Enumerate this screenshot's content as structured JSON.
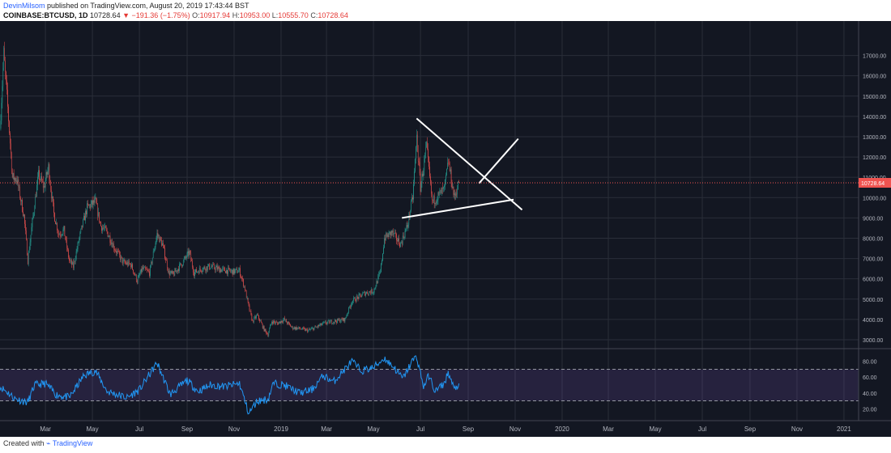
{
  "header": {
    "author": "DevinMilsom",
    "published": "published on TradingView.com, August 20, 2019 17:43:44 BST",
    "symbol": "COINBASE:BTCUSD, 1D",
    "last": "10728.64",
    "change": "−191.36 (−1.75%)",
    "o": "10917.94",
    "h": "10953.00",
    "l": "10555.70",
    "c": "10728.64"
  },
  "footer": {
    "created": "Created with",
    "brand": "TradingView"
  },
  "colors": {
    "up": "#26a69a",
    "down": "#ef5350",
    "background": "#131722",
    "rsi": "#2196f3",
    "band": "#7e57c2",
    "price_line": "#ef5350"
  },
  "chart_data": [
    {
      "type": "candlestick",
      "title": "COINBASE:BTCUSD, 1D",
      "x_range": [
        "2018-01-01",
        "2021-01-20"
      ],
      "ylim": [
        2600,
        17900
      ],
      "x_ticks": [
        {
          "label": "Mar",
          "date": "2018-03-01"
        },
        {
          "label": "May",
          "date": "2018-05-01"
        },
        {
          "label": "Jul",
          "date": "2018-07-01"
        },
        {
          "label": "Sep",
          "date": "2018-09-01"
        },
        {
          "label": "Nov",
          "date": "2018-11-01"
        },
        {
          "label": "2019",
          "date": "2019-01-01"
        },
        {
          "label": "Mar",
          "date": "2019-03-01"
        },
        {
          "label": "May",
          "date": "2019-05-01"
        },
        {
          "label": "Jul",
          "date": "2019-07-01"
        },
        {
          "label": "Sep",
          "date": "2019-09-01"
        },
        {
          "label": "Nov",
          "date": "2019-11-01"
        },
        {
          "label": "2020",
          "date": "2020-01-01"
        },
        {
          "label": "Mar",
          "date": "2020-03-01"
        },
        {
          "label": "May",
          "date": "2020-05-01"
        },
        {
          "label": "Jul",
          "date": "2020-07-01"
        },
        {
          "label": "Sep",
          "date": "2020-09-01"
        },
        {
          "label": "Nov",
          "date": "2020-11-01"
        },
        {
          "label": "2021",
          "date": "2021-01-01"
        }
      ],
      "y_ticks": [
        {
          "label": "17000.00",
          "value": 17000
        },
        {
          "label": "16000.00",
          "value": 16000
        },
        {
          "label": "15000.00",
          "value": 15000
        },
        {
          "label": "14000.00",
          "value": 14000
        },
        {
          "label": "13000.00",
          "value": 13000
        },
        {
          "label": "12000.00",
          "value": 12000
        },
        {
          "label": "11000.00",
          "value": 11000
        },
        {
          "label": "10000.00",
          "value": 10000
        },
        {
          "label": "9000.00",
          "value": 9000
        },
        {
          "label": "8000.00",
          "value": 8000
        },
        {
          "label": "7000.00",
          "value": 7000
        },
        {
          "label": "6000.00",
          "value": 6000
        },
        {
          "label": "5000.00",
          "value": 5000
        },
        {
          "label": "4000.00",
          "value": 4000
        },
        {
          "label": "3000.00",
          "value": 3000
        }
      ],
      "last_price": {
        "value": 10728.64,
        "label": "10728.64"
      },
      "closes": [
        {
          "date": "2018-01-01",
          "close": 13400
        },
        {
          "date": "2018-01-06",
          "close": 17100
        },
        {
          "date": "2018-01-10",
          "close": 15000
        },
        {
          "date": "2018-01-17",
          "close": 11000
        },
        {
          "date": "2018-01-23",
          "close": 10900
        },
        {
          "date": "2018-02-01",
          "close": 9100
        },
        {
          "date": "2018-02-06",
          "close": 6900
        },
        {
          "date": "2018-02-12",
          "close": 8800
        },
        {
          "date": "2018-02-20",
          "close": 11100
        },
        {
          "date": "2018-02-27",
          "close": 10500
        },
        {
          "date": "2018-03-05",
          "close": 11500
        },
        {
          "date": "2018-03-12",
          "close": 9200
        },
        {
          "date": "2018-03-18",
          "close": 8200
        },
        {
          "date": "2018-03-25",
          "close": 8400
        },
        {
          "date": "2018-04-01",
          "close": 6900
        },
        {
          "date": "2018-04-06",
          "close": 6600
        },
        {
          "date": "2018-04-14",
          "close": 8000
        },
        {
          "date": "2018-04-24",
          "close": 9500
        },
        {
          "date": "2018-05-05",
          "close": 9800
        },
        {
          "date": "2018-05-12",
          "close": 8600
        },
        {
          "date": "2018-05-20",
          "close": 8300
        },
        {
          "date": "2018-05-30",
          "close": 7500
        },
        {
          "date": "2018-06-10",
          "close": 6800
        },
        {
          "date": "2018-06-20",
          "close": 6700
        },
        {
          "date": "2018-06-28",
          "close": 5900
        },
        {
          "date": "2018-07-05",
          "close": 6500
        },
        {
          "date": "2018-07-14",
          "close": 6300
        },
        {
          "date": "2018-07-24",
          "close": 8200
        },
        {
          "date": "2018-07-31",
          "close": 7700
        },
        {
          "date": "2018-08-08",
          "close": 6300
        },
        {
          "date": "2018-08-14",
          "close": 6200
        },
        {
          "date": "2018-08-24",
          "close": 6700
        },
        {
          "date": "2018-09-04",
          "close": 7300
        },
        {
          "date": "2018-09-10",
          "close": 6300
        },
        {
          "date": "2018-09-20",
          "close": 6500
        },
        {
          "date": "2018-10-01",
          "close": 6600
        },
        {
          "date": "2018-10-15",
          "close": 6450
        },
        {
          "date": "2018-10-31",
          "close": 6350
        },
        {
          "date": "2018-11-08",
          "close": 6400
        },
        {
          "date": "2018-11-15",
          "close": 5500
        },
        {
          "date": "2018-11-20",
          "close": 4600
        },
        {
          "date": "2018-11-25",
          "close": 3900
        },
        {
          "date": "2018-12-01",
          "close": 4200
        },
        {
          "date": "2018-12-10",
          "close": 3500
        },
        {
          "date": "2018-12-15",
          "close": 3250
        },
        {
          "date": "2018-12-20",
          "close": 3900
        },
        {
          "date": "2018-12-27",
          "close": 3800
        },
        {
          "date": "2019-01-05",
          "close": 4000
        },
        {
          "date": "2019-01-15",
          "close": 3600
        },
        {
          "date": "2019-01-25",
          "close": 3550
        },
        {
          "date": "2019-02-05",
          "close": 3450
        },
        {
          "date": "2019-02-15",
          "close": 3600
        },
        {
          "date": "2019-02-25",
          "close": 3800
        },
        {
          "date": "2019-03-10",
          "close": 3900
        },
        {
          "date": "2019-03-25",
          "close": 4000
        },
        {
          "date": "2019-04-03",
          "close": 4900
        },
        {
          "date": "2019-04-20",
          "close": 5300
        },
        {
          "date": "2019-05-01",
          "close": 5400
        },
        {
          "date": "2019-05-10",
          "close": 6300
        },
        {
          "date": "2019-05-15",
          "close": 8000
        },
        {
          "date": "2019-05-25",
          "close": 8300
        },
        {
          "date": "2019-06-05",
          "close": 7700
        },
        {
          "date": "2019-06-14",
          "close": 8600
        },
        {
          "date": "2019-06-21",
          "close": 10000
        },
        {
          "date": "2019-06-26",
          "close": 13000
        },
        {
          "date": "2019-07-01",
          "close": 10500
        },
        {
          "date": "2019-07-09",
          "close": 12500
        },
        {
          "date": "2019-07-16",
          "close": 9800
        },
        {
          "date": "2019-07-22",
          "close": 10000
        },
        {
          "date": "2019-08-01",
          "close": 10400
        },
        {
          "date": "2019-08-06",
          "close": 11800
        },
        {
          "date": "2019-08-14",
          "close": 10000
        },
        {
          "date": "2019-08-20",
          "close": 10728.64
        }
      ],
      "trendlines": [
        {
          "from": {
            "date": "2019-06-26",
            "value": 13900
          },
          "to": {
            "date": "2019-11-10",
            "value": 9400
          }
        },
        {
          "from": {
            "date": "2019-06-07",
            "value": 9000
          },
          "to": {
            "date": "2019-10-30",
            "value": 9900
          }
        },
        {
          "from": {
            "date": "2019-09-15",
            "value": 10700
          },
          "to": {
            "date": "2019-11-05",
            "value": 12900
          }
        }
      ]
    },
    {
      "type": "line",
      "title": "RSI",
      "ylim": [
        5,
        95
      ],
      "y_ticks": [
        {
          "label": "80.00",
          "value": 80
        },
        {
          "label": "60.00",
          "value": 60
        },
        {
          "label": "40.00",
          "value": 40
        },
        {
          "label": "20.00",
          "value": 20
        }
      ],
      "band": [
        30,
        70
      ],
      "series": [
        {
          "values": [
            {
              "date": "2018-01-01",
              "value": 48
            },
            {
              "date": "2018-01-12",
              "value": 40
            },
            {
              "date": "2018-01-20",
              "value": 33
            },
            {
              "date": "2018-02-06",
              "value": 28
            },
            {
              "date": "2018-02-15",
              "value": 50
            },
            {
              "date": "2018-03-01",
              "value": 52
            },
            {
              "date": "2018-03-15",
              "value": 38
            },
            {
              "date": "2018-04-01",
              "value": 34
            },
            {
              "date": "2018-04-20",
              "value": 62
            },
            {
              "date": "2018-05-05",
              "value": 68
            },
            {
              "date": "2018-05-20",
              "value": 42
            },
            {
              "date": "2018-06-15",
              "value": 34
            },
            {
              "date": "2018-07-01",
              "value": 44
            },
            {
              "date": "2018-07-24",
              "value": 78
            },
            {
              "date": "2018-08-10",
              "value": 38
            },
            {
              "date": "2018-09-01",
              "value": 56
            },
            {
              "date": "2018-09-15",
              "value": 42
            },
            {
              "date": "2018-10-01",
              "value": 50
            },
            {
              "date": "2018-10-20",
              "value": 48
            },
            {
              "date": "2018-11-08",
              "value": 52
            },
            {
              "date": "2018-11-20",
              "value": 14
            },
            {
              "date": "2018-12-01",
              "value": 30
            },
            {
              "date": "2018-12-15",
              "value": 32
            },
            {
              "date": "2018-12-22",
              "value": 52
            },
            {
              "date": "2019-01-05",
              "value": 50
            },
            {
              "date": "2019-01-25",
              "value": 40
            },
            {
              "date": "2019-02-10",
              "value": 44
            },
            {
              "date": "2019-02-25",
              "value": 62
            },
            {
              "date": "2019-03-10",
              "value": 54
            },
            {
              "date": "2019-04-03",
              "value": 80
            },
            {
              "date": "2019-04-15",
              "value": 68
            },
            {
              "date": "2019-05-01",
              "value": 72
            },
            {
              "date": "2019-05-15",
              "value": 84
            },
            {
              "date": "2019-05-28",
              "value": 72
            },
            {
              "date": "2019-06-08",
              "value": 58
            },
            {
              "date": "2019-06-20",
              "value": 80
            },
            {
              "date": "2019-06-26",
              "value": 86
            },
            {
              "date": "2019-07-05",
              "value": 48
            },
            {
              "date": "2019-07-12",
              "value": 62
            },
            {
              "date": "2019-07-20",
              "value": 42
            },
            {
              "date": "2019-08-01",
              "value": 52
            },
            {
              "date": "2019-08-06",
              "value": 66
            },
            {
              "date": "2019-08-14",
              "value": 44
            },
            {
              "date": "2019-08-20",
              "value": 52
            }
          ]
        }
      ]
    }
  ]
}
